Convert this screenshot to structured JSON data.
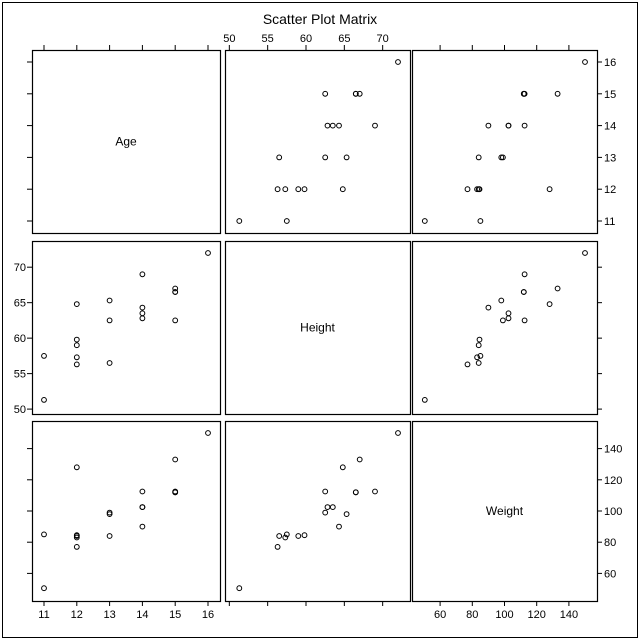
{
  "chart_data": {
    "type": "scatter",
    "title": "Scatter Plot Matrix",
    "grid": false,
    "variables": [
      "Age",
      "Height",
      "Weight"
    ],
    "axes": {
      "Age": {
        "range": [
          11,
          16
        ],
        "ticks": [
          11,
          12,
          13,
          14,
          15,
          16
        ]
      },
      "Height": {
        "range": [
          51,
          72
        ],
        "ticks": [
          50,
          55,
          60,
          65,
          70
        ]
      },
      "Weight": {
        "range": [
          50,
          150
        ],
        "ticks": [
          60,
          80,
          100,
          120,
          140
        ]
      }
    },
    "observations": [
      {
        "Age": 11,
        "Height": 51.3,
        "Weight": 50.5
      },
      {
        "Age": 11,
        "Height": 57.5,
        "Weight": 85
      },
      {
        "Age": 12,
        "Height": 56.3,
        "Weight": 77
      },
      {
        "Age": 12,
        "Height": 57.3,
        "Weight": 83
      },
      {
        "Age": 12,
        "Height": 59.0,
        "Weight": 84
      },
      {
        "Age": 12,
        "Height": 59.8,
        "Weight": 84.5
      },
      {
        "Age": 12,
        "Height": 64.8,
        "Weight": 128
      },
      {
        "Age": 13,
        "Height": 56.5,
        "Weight": 84
      },
      {
        "Age": 13,
        "Height": 62.5,
        "Weight": 99
      },
      {
        "Age": 13,
        "Height": 65.3,
        "Weight": 98
      },
      {
        "Age": 14,
        "Height": 62.8,
        "Weight": 102.5
      },
      {
        "Age": 14,
        "Height": 63.5,
        "Weight": 102.5
      },
      {
        "Age": 14,
        "Height": 64.3,
        "Weight": 90
      },
      {
        "Age": 14,
        "Height": 69.0,
        "Weight": 112.5
      },
      {
        "Age": 15,
        "Height": 62.5,
        "Weight": 112.5
      },
      {
        "Age": 15,
        "Height": 66.5,
        "Weight": 112
      },
      {
        "Age": 15,
        "Height": 67.0,
        "Weight": 133
      },
      {
        "Age": 15,
        "Height": 66.5,
        "Weight": 112
      },
      {
        "Age": 16,
        "Height": 72.0,
        "Weight": 150
      }
    ]
  }
}
